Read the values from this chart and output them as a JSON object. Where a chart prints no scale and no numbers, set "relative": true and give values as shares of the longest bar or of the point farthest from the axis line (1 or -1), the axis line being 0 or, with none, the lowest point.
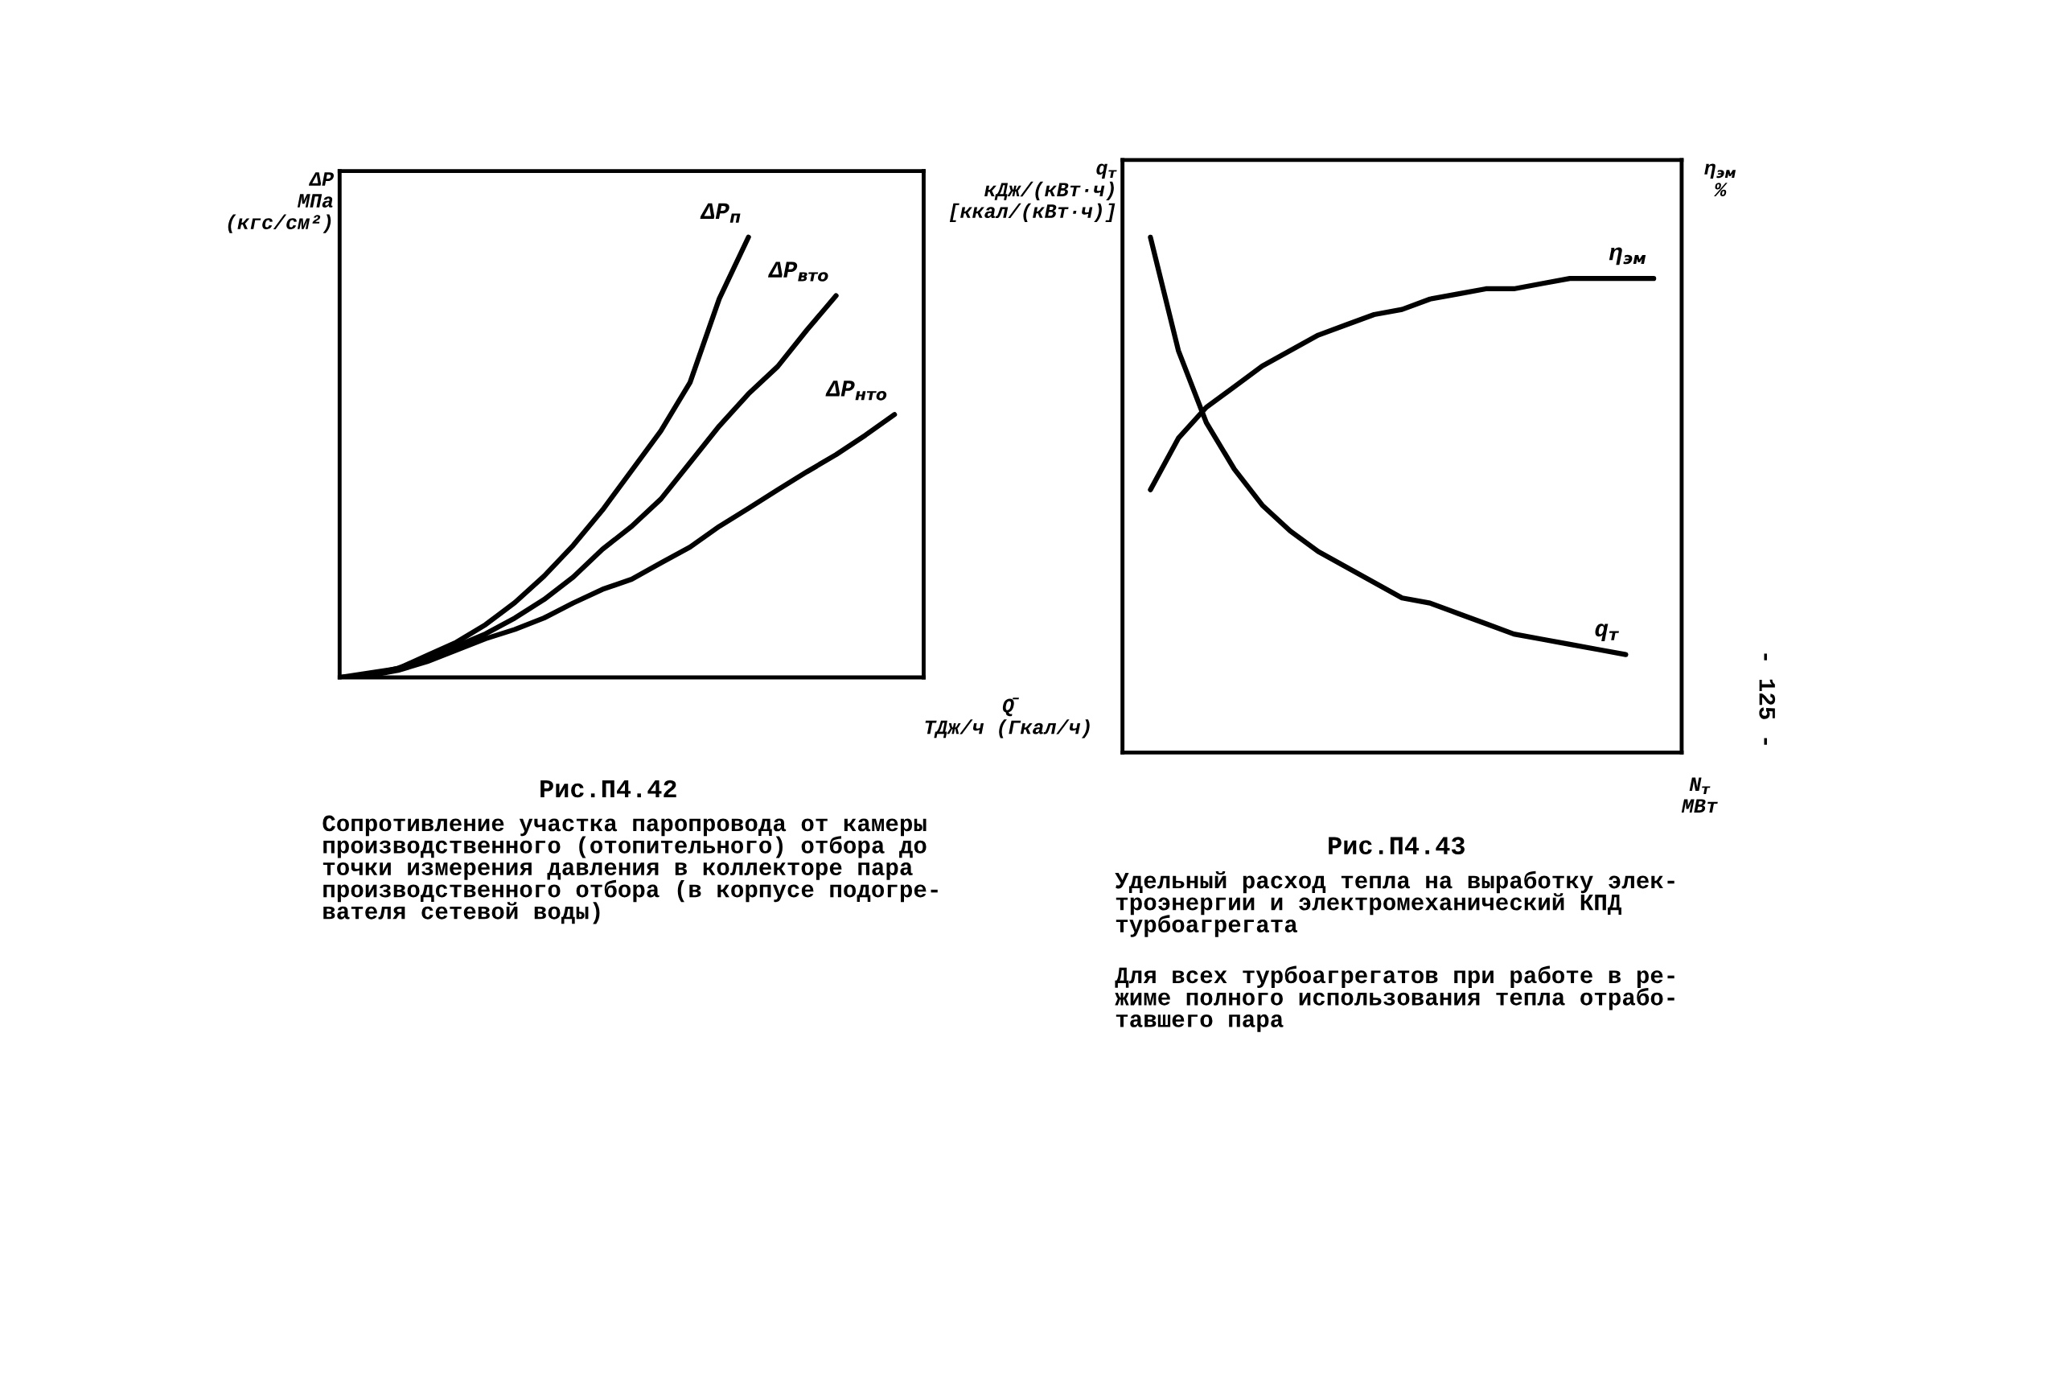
{
  "chart_data": [
    {
      "type": "line",
      "relative": true,
      "title": "Рис.П4.42",
      "subtitle": "Сопротивление участка паропровода от камеры\nпроизводственного (отопительного) отбора до\nточки измерения давления в коллекторе пара\nпроизводственного отбора (в корпусе подогре-\nвателя сетевой воды)",
      "xlabel": "Q̄\nТДж/ч (Гкал/ч)",
      "ylabel": "ΔP\nМПа\n(кгс/см²)",
      "categories": [
        null,
        null,
        null,
        null,
        null,
        null,
        null,
        null,
        null,
        null,
        null,
        null,
        null,
        null,
        null,
        null,
        null,
        null,
        null,
        null,
        null
      ],
      "series": [
        {
          "name": "ΔP$_{п}$",
          "color": "#000000",
          "values": [
            0,
            0.01,
            0.02,
            0.05,
            0.08,
            0.12,
            0.17,
            0.23,
            0.3,
            0.38,
            0.47,
            0.56,
            0.67,
            0.86,
            1,
            null,
            null,
            null,
            null,
            null,
            null
          ]
        },
        {
          "name": "ΔP$_{вто}$",
          "color": "#000000",
          "values": [
            0,
            0.005,
            0.021,
            0.042,
            0.071,
            0.099,
            0.135,
            0.177,
            0.228,
            0.291,
            0.343,
            0.405,
            0.488,
            0.571,
            0.644,
            0.706,
            0.789,
            0.867,
            null,
            null,
            null
          ]
        },
        {
          "name": "ΔP$_{нто}$",
          "color": "#000000",
          "values": [
            0,
            0.004,
            0.016,
            0.036,
            0.062,
            0.088,
            0.109,
            0.135,
            0.169,
            0.2,
            0.223,
            0.26,
            0.296,
            0.343,
            0.384,
            0.426,
            0.467,
            0.506,
            0.55,
            0.597,
            null
          ]
        }
      ],
      "grid": false,
      "legend": false,
      "line_style": "solid",
      "marker": "none"
    },
    {
      "type": "line",
      "relative": true,
      "title": "Рис.П4.43",
      "subtitle": "Удельный расход тепла на выработку элек-\nтроэнергии и электромеханический КПД\nтурбоагрегата",
      "xlabel": "N$_{т}$\nМВт",
      "ylabel": "q$_{т}$\nкДж/(кВт·ч)\n[ккал/(кВт·ч)]",
      "y2label": "η$_{эм}$\n%",
      "annotations": [
        "Для всех турбоагрегатов при работе в ре-\nжиме полного использования тепла отрабо-\nтавшего пара",
        "- 125 -"
      ],
      "categories": [
        null,
        null,
        null,
        null,
        null,
        null,
        null,
        null,
        null,
        null,
        null,
        null,
        null,
        null,
        null,
        null,
        null,
        null,
        null,
        null,
        null
      ],
      "series": [
        {
          "name": "q$_{т}$",
          "color": "#000000",
          "values": [
            null,
            1,
            0.78,
            0.64,
            0.55,
            0.48,
            0.43,
            0.39,
            0.36,
            0.33,
            0.3,
            0.29,
            0.27,
            0.25,
            0.23,
            0.22,
            0.21,
            0.2,
            0.19,
            null,
            null
          ]
        },
        {
          "name": "η$_{эм}$",
          "color": "#000000",
          "values": [
            null,
            0.51,
            0.61,
            0.67,
            0.71,
            0.75,
            0.78,
            0.81,
            0.83,
            0.85,
            0.86,
            0.88,
            0.89,
            0.9,
            0.9,
            0.91,
            0.92,
            0.92,
            0.92,
            0.92,
            null
          ]
        }
      ],
      "grid": false,
      "legend": false,
      "line_style": "solid",
      "marker": "none"
    }
  ]
}
